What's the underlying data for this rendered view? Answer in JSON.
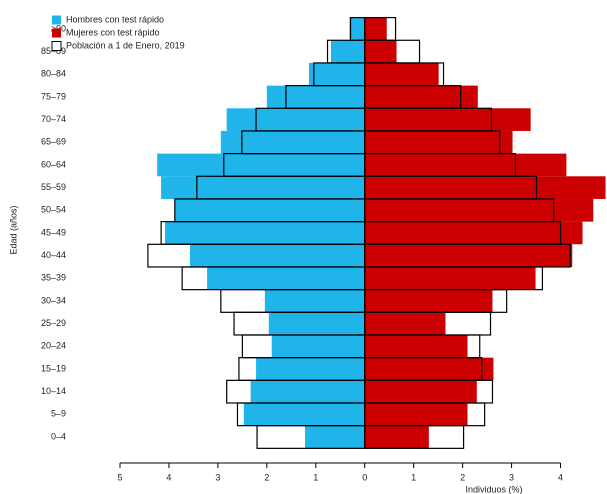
{
  "chart_data": {
    "type": "pyramid",
    "xlabel": "Individuos (%)",
    "ylabel": "Edad (años)",
    "categories": [
      "0–4",
      "5–9",
      "10–14",
      "15–19",
      "20–24",
      "25–29",
      "30–34",
      "35–39",
      "40–44",
      "45–49",
      "50–54",
      "55–59",
      "60–64",
      "65–69",
      "70–74",
      "75–79",
      "80–84",
      "85–89",
      "≥90"
    ],
    "series": [
      {
        "name": "Hombres con test rápido",
        "color": "#1fb4ea",
        "side": "left",
        "values": [
          1.22,
          2.47,
          2.33,
          2.22,
          1.9,
          1.96,
          2.04,
          3.22,
          3.57,
          4.08,
          3.88,
          4.16,
          4.24,
          2.94,
          2.82,
          2.0,
          1.14,
          0.69,
          0.31
        ]
      },
      {
        "name": "Mujeres con test rápido",
        "color": "#cc0000",
        "side": "right",
        "values": [
          1.31,
          2.1,
          2.29,
          2.63,
          2.1,
          1.65,
          2.61,
          3.49,
          4.24,
          4.45,
          4.67,
          4.92,
          4.12,
          3.02,
          3.39,
          2.31,
          1.51,
          0.65,
          0.45
        ]
      },
      {
        "name": "Población a 1 de Enero, 2019",
        "color": "#000000",
        "values": {
          "left": [
            2.2,
            2.6,
            2.82,
            2.57,
            2.5,
            2.67,
            2.94,
            3.73,
            4.43,
            4.16,
            3.88,
            3.43,
            2.88,
            2.51,
            2.22,
            1.61,
            1.04,
            0.76,
            0.29
          ],
          "right": [
            2.02,
            2.45,
            2.61,
            2.39,
            2.35,
            2.57,
            2.9,
            3.63,
            4.2,
            4.0,
            3.86,
            3.51,
            3.08,
            2.76,
            2.59,
            1.96,
            1.61,
            1.12,
            0.63
          ]
        }
      }
    ],
    "xlim": [
      -5,
      4.95
    ],
    "xticks": [
      {
        "value": -5,
        "label": "5"
      },
      {
        "value": -4,
        "label": "4"
      },
      {
        "value": -3,
        "label": "3"
      },
      {
        "value": -2,
        "label": "2"
      },
      {
        "value": -1,
        "label": "1"
      },
      0,
      1,
      2,
      3,
      4
    ],
    "legend": "top-left"
  }
}
